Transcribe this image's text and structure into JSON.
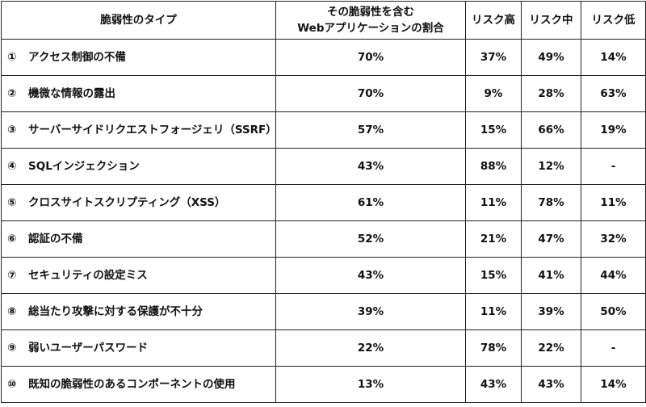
{
  "header": {
    "type": "脆弱性のタイプ",
    "ratio_line1": "その脆弱性を含む",
    "ratio_line2": "Webアプリケーションの割合",
    "high": "リスク高",
    "mid": "リスク中",
    "low": "リスク低"
  },
  "rows": [
    {
      "idx": "①",
      "type": "アクセス制御の不備",
      "ratio": "70%",
      "high": "37%",
      "mid": "49%",
      "low": "14%"
    },
    {
      "idx": "②",
      "type": "機微な情報の露出",
      "ratio": "70%",
      "high": "9%",
      "mid": "28%",
      "low": "63%"
    },
    {
      "idx": "③",
      "type": "サーバーサイドリクエストフォージェリ（SSRF）",
      "ratio": "57%",
      "high": "15%",
      "mid": "66%",
      "low": "19%"
    },
    {
      "idx": "④",
      "type": "SQLインジェクション",
      "ratio": "43%",
      "high": "88%",
      "mid": "12%",
      "low": "-"
    },
    {
      "idx": "⑤",
      "type": "クロスサイトスクリプティング（XSS）",
      "ratio": "61%",
      "high": "11%",
      "mid": "78%",
      "low": "11%"
    },
    {
      "idx": "⑥",
      "type": "認証の不備",
      "ratio": "52%",
      "high": "21%",
      "mid": "47%",
      "low": "32%"
    },
    {
      "idx": "⑦",
      "type": "セキュリティの設定ミス",
      "ratio": "43%",
      "high": "15%",
      "mid": "41%",
      "low": "44%"
    },
    {
      "idx": "⑧",
      "type": "総当たり攻撃に対する保護が不十分",
      "ratio": "39%",
      "high": "11%",
      "mid": "39%",
      "low": "50%"
    },
    {
      "idx": "⑨",
      "type": "弱いユーザーパスワード",
      "ratio": "22%",
      "high": "78%",
      "mid": "22%",
      "low": "-"
    },
    {
      "idx": "⑩",
      "type": "既知の脆弱性のあるコンポーネントの使用",
      "ratio": "13%",
      "high": "43%",
      "mid": "43%",
      "low": "14%"
    }
  ]
}
